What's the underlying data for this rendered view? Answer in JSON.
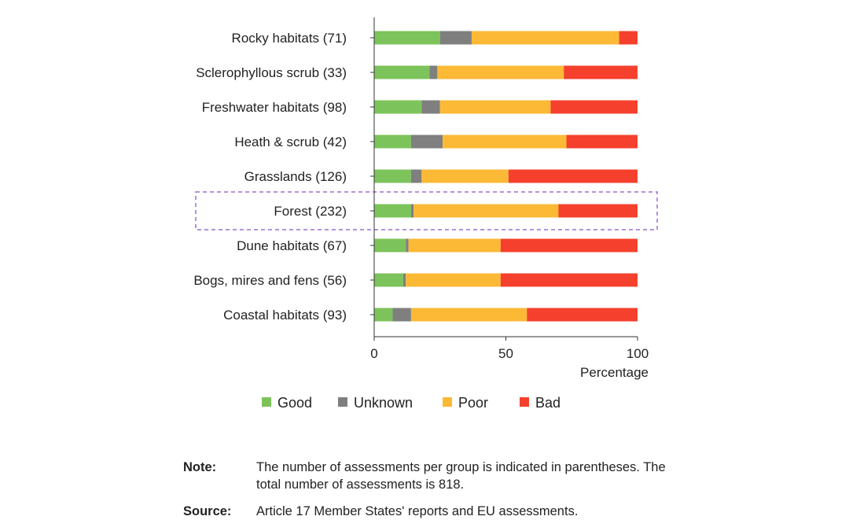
{
  "chart_data": {
    "type": "bar",
    "orientation": "horizontal",
    "stacked": true,
    "categories": [
      "Rocky habitats (71)",
      "Sclerophyllous scrub (33)",
      "Freshwater habitats (98)",
      "Heath & scrub (42)",
      "Grasslands (126)",
      "Forest (232)",
      "Dune habitats (67)",
      "Bogs, mires and fens (56)",
      "Coastal habitats (93)"
    ],
    "series": [
      {
        "name": "Good",
        "color": "#7dc35b",
        "values": [
          25,
          21,
          18,
          14,
          14,
          14,
          12,
          11,
          7
        ]
      },
      {
        "name": "Unknown",
        "color": "#7f7f7f",
        "values": [
          12,
          3,
          7,
          12,
          4,
          1,
          1,
          1,
          7
        ]
      },
      {
        "name": "Poor",
        "color": "#fbb935",
        "values": [
          56,
          48,
          42,
          47,
          33,
          55,
          35,
          36,
          44
        ]
      },
      {
        "name": "Bad",
        "color": "#f5402e",
        "values": [
          7,
          28,
          33,
          27,
          49,
          30,
          52,
          52,
          42
        ]
      }
    ],
    "xlim": [
      0,
      100
    ],
    "xticks": [
      0,
      50,
      100
    ],
    "xlabel": "Percentage",
    "ylabel": "",
    "title": "",
    "legend_position": "bottom",
    "grid": false,
    "highlighted_category": "Forest (232)",
    "highlight_color": "#9b6fd1"
  },
  "notes": [
    {
      "key": "Note:",
      "text": "The number of assessments per group is indicated in parentheses. The total number of assessments is 818."
    },
    {
      "key": "Source:",
      "text": "Article 17 Member States' reports and EU assessments."
    }
  ]
}
